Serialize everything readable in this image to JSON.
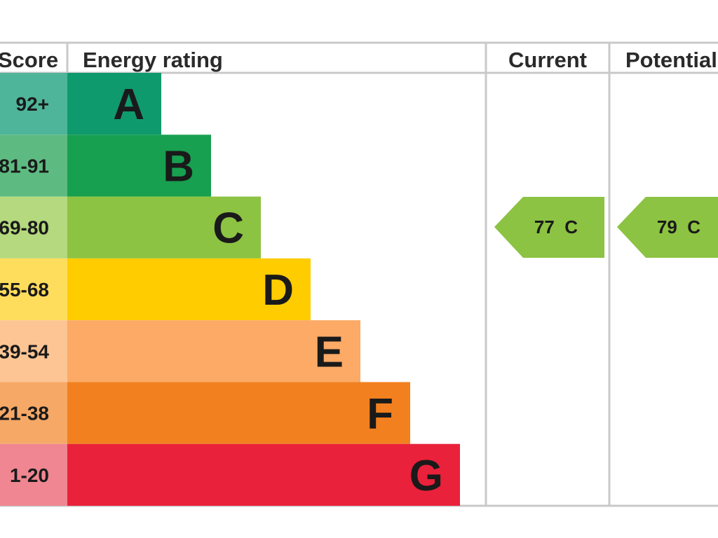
{
  "chart_data": {
    "type": "bar",
    "headers": {
      "score": "Score",
      "rating": "Energy rating",
      "current": "Current",
      "potential": "Potential"
    },
    "bands": [
      {
        "score": "92+",
        "letter": "A",
        "color": "#0f9a6e",
        "score_color": "#4fb59a"
      },
      {
        "score": "81-91",
        "letter": "B",
        "color": "#17a04f",
        "score_color": "#5dbb82"
      },
      {
        "score": "69-80",
        "letter": "C",
        "color": "#8cc342",
        "score_color": "#b4d97e"
      },
      {
        "score": "55-68",
        "letter": "D",
        "color": "#ffcc00",
        "score_color": "#ffdd5c"
      },
      {
        "score": "39-54",
        "letter": "E",
        "color": "#fcaa65",
        "score_color": "#fdc594"
      },
      {
        "score": "21-38",
        "letter": "F",
        "color": "#f2801f",
        "score_color": "#f6a866"
      },
      {
        "score": "1-20",
        "letter": "G",
        "color": "#e9213a",
        "score_color": "#ef8691"
      }
    ],
    "current": {
      "value": 77,
      "band": "C",
      "label": "77  C",
      "color": "#8cc342"
    },
    "potential": {
      "value": 79,
      "band": "C",
      "label": "79  C",
      "color": "#8cc342"
    }
  }
}
